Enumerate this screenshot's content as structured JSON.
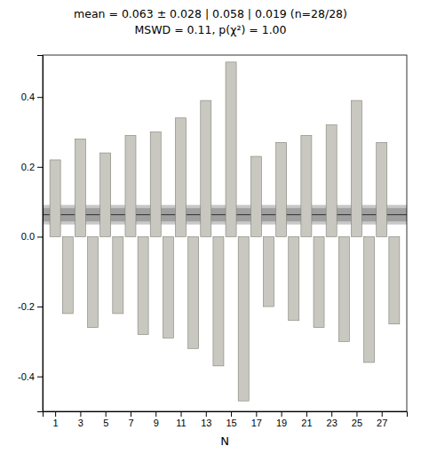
{
  "chart_data": {
    "type": "bar",
    "title": "mean = 0.063 ± 0.028 | 0.058 | 0.019  (n=28/28)",
    "subtitle": "MSWD = 0.11, p(χ²) = 1.00",
    "x_label": "N",
    "x": [
      1,
      2,
      3,
      4,
      5,
      6,
      7,
      8,
      9,
      10,
      11,
      12,
      13,
      14,
      15,
      16,
      17,
      18,
      19,
      20,
      21,
      22,
      23,
      24,
      25,
      26,
      27,
      28
    ],
    "values": [
      0.22,
      -0.22,
      0.28,
      -0.26,
      0.24,
      -0.22,
      0.29,
      -0.28,
      0.3,
      -0.29,
      0.34,
      -0.32,
      0.39,
      -0.37,
      0.5,
      -0.47,
      0.23,
      -0.2,
      0.27,
      -0.24,
      0.29,
      -0.26,
      0.32,
      -0.3,
      0.39,
      -0.36,
      0.27,
      -0.25
    ],
    "color": "#c8c8c0",
    "mean_line": {
      "value": 0.063,
      "color": "#303030"
    },
    "bands": [
      {
        "range": [
          0.035,
          0.091
        ],
        "color": "#c8c8c8"
      },
      {
        "range": [
          0.044,
          0.082
        ],
        "color": "#a0a0a0"
      }
    ],
    "xlim": [
      0.0,
      29.0
    ],
    "xticks": [
      1,
      3,
      5,
      7,
      9,
      11,
      13,
      15,
      17,
      19,
      21,
      23,
      25,
      27
    ],
    "ylim": [
      -0.5,
      0.52
    ],
    "yticks": [
      -0.4,
      -0.2,
      {
        "value": 0.0,
        "label": "0.0"
      },
      0.2,
      0.4
    ],
    "grid": false
  }
}
